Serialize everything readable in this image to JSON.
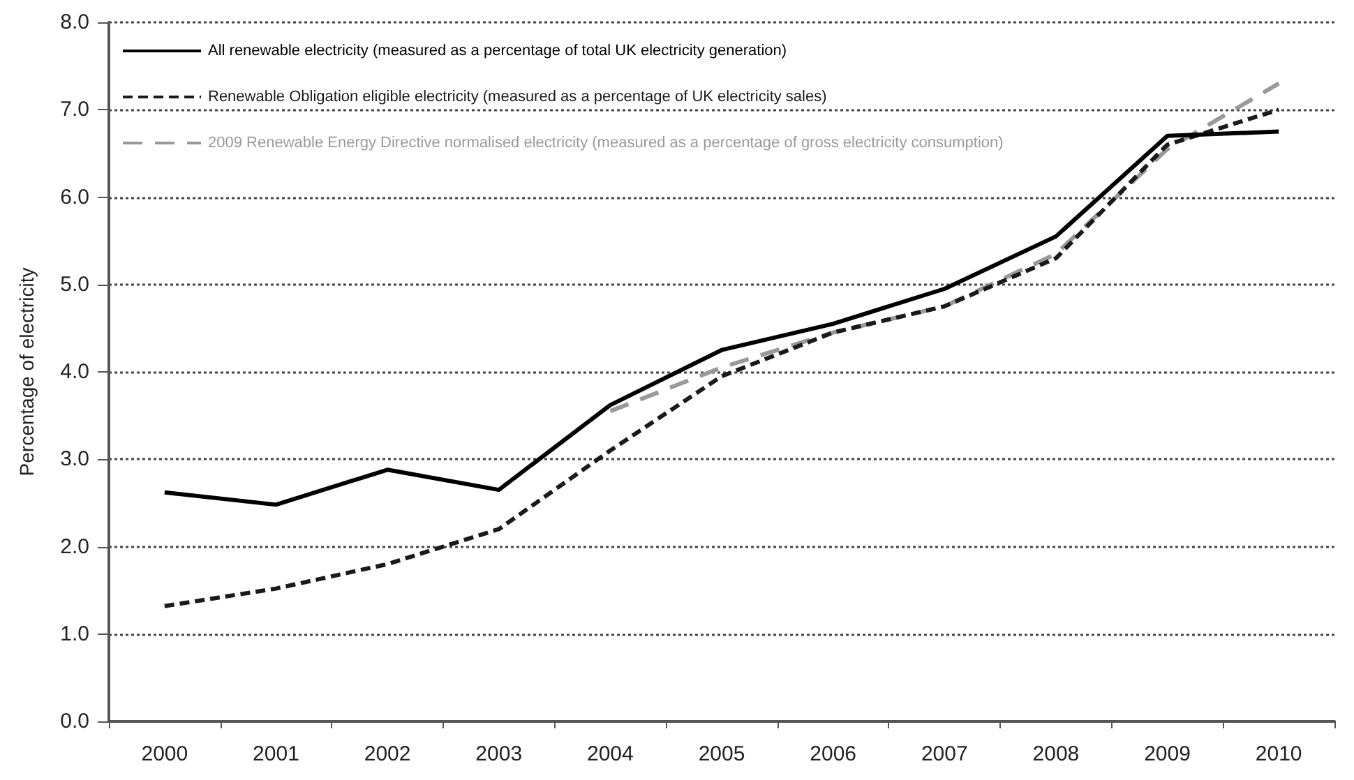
{
  "chart_data": {
    "type": "line",
    "ylabel": "Percentage of electricity",
    "categories": [
      "2000",
      "2001",
      "2002",
      "2003",
      "2004",
      "2005",
      "2006",
      "2007",
      "2008",
      "2009",
      "2010"
    ],
    "series": [
      {
        "name": "All renewable electricity (measured as a percentage of total UK electricity generation)",
        "color": "#000000",
        "line_style": "solid",
        "values": [
          2.62,
          2.48,
          2.88,
          2.65,
          3.62,
          4.25,
          4.55,
          4.95,
          5.55,
          6.7,
          6.75
        ]
      },
      {
        "name": "Renewable Obligation eligible electricity (measured as a percentage of UK electricity sales)",
        "color": "#1a1a1a",
        "line_style": "dashed",
        "values": [
          1.32,
          1.52,
          1.8,
          2.2,
          3.1,
          3.95,
          4.45,
          4.75,
          5.3,
          6.6,
          7.0
        ]
      },
      {
        "name": "2009 Renewable Energy Directive normalised electricity (measured as a percentage of gross electricity consumption)",
        "color": "#999999",
        "line_style": "dashed",
        "values": [
          null,
          null,
          null,
          null,
          3.55,
          4.05,
          4.45,
          4.75,
          5.35,
          6.55,
          7.3
        ]
      }
    ],
    "ylim": [
      0,
      8
    ],
    "yticks": [
      {
        "value": 0,
        "label": "0.0"
      },
      {
        "value": 1,
        "label": "1.0"
      },
      {
        "value": 2,
        "label": "2.0"
      },
      {
        "value": 3,
        "label": "3.0"
      },
      {
        "value": 4,
        "label": "4.0"
      },
      {
        "value": 5,
        "label": "5.0"
      },
      {
        "value": 6,
        "label": "6.0"
      },
      {
        "value": 7,
        "label": "7.0"
      },
      {
        "value": 8,
        "label": "8.0"
      }
    ],
    "grid": "y",
    "legend": "top left",
    "marker": "none"
  }
}
